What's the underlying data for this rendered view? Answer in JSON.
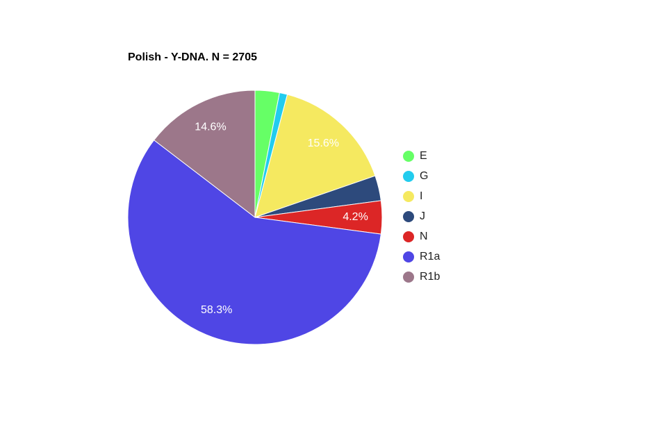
{
  "chart_data": {
    "type": "pie",
    "title": "Polish - Y-DNA. N = 2705",
    "categories": [
      "E",
      "G",
      "I",
      "J",
      "N",
      "R1a",
      "R1b"
    ],
    "values": [
      3.1,
      1.0,
      15.6,
      3.2,
      4.2,
      58.3,
      14.6
    ],
    "value_labels": [
      null,
      null,
      "15.6%",
      null,
      "4.2%",
      "58.3%",
      "14.6%"
    ],
    "colors": [
      "#66ff66",
      "#22ccee",
      "#f5e960",
      "#2d4a7c",
      "#dc2626",
      "#4f46e5",
      "#9c778a"
    ],
    "legend": "right"
  }
}
